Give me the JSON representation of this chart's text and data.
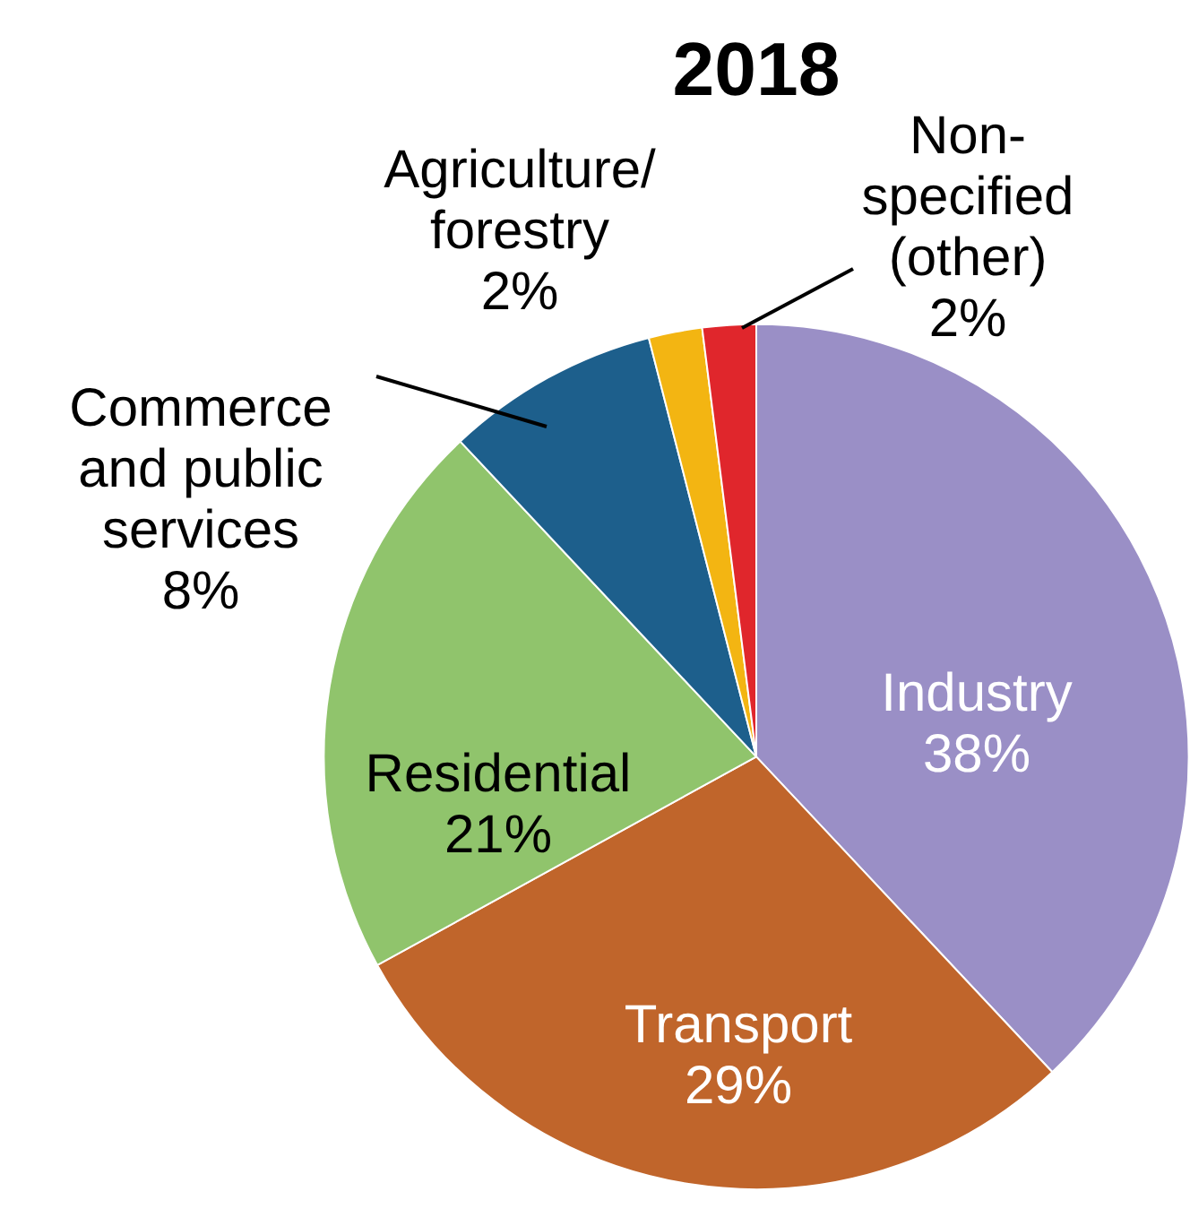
{
  "chart_data": {
    "type": "pie",
    "title": "2018",
    "categories": [
      "Industry",
      "Transport",
      "Residential",
      "Commerce and public services",
      "Agriculture/forestry",
      "Non-specified (other)"
    ],
    "values": [
      38,
      29,
      21,
      8,
      2,
      2
    ],
    "value_labels": [
      "38%",
      "29%",
      "21%",
      "8%",
      "2%",
      "2%"
    ],
    "colors": [
      "#9a8fc6",
      "#c0652b",
      "#90c46c",
      "#1d5f8c",
      "#f3b512",
      "#e0262c"
    ],
    "legend": false
  }
}
